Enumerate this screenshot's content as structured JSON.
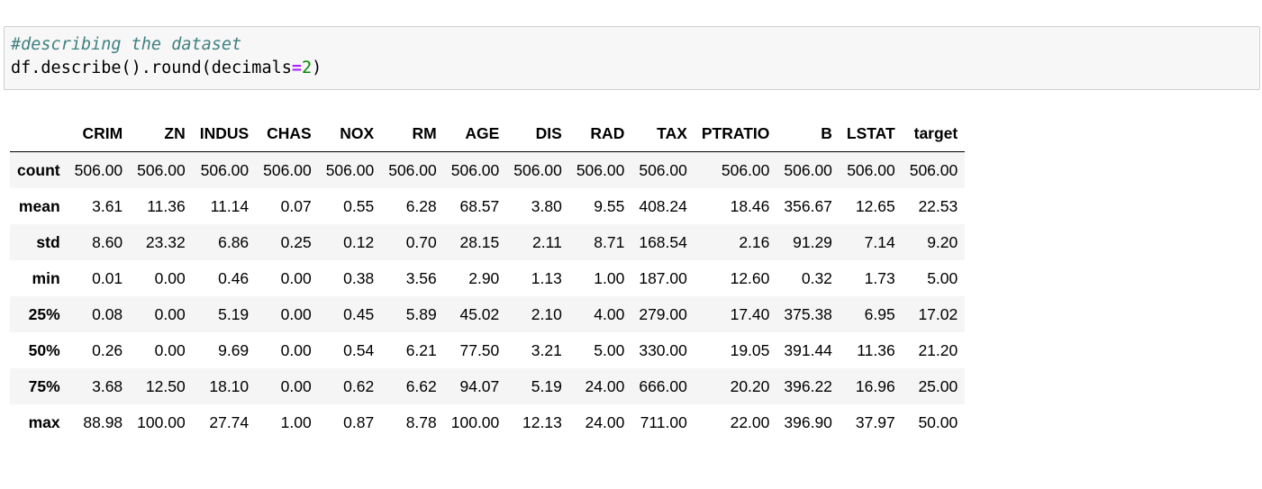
{
  "code_cell": {
    "comment": "#describing the dataset",
    "code_prefix": "df.describe().round(decimals",
    "code_operator": "=",
    "code_number": "2",
    "code_suffix": ")"
  },
  "table": {
    "corner": "",
    "columns": [
      "CRIM",
      "ZN",
      "INDUS",
      "CHAS",
      "NOX",
      "RM",
      "AGE",
      "DIS",
      "RAD",
      "TAX",
      "PTRATIO",
      "B",
      "LSTAT",
      "target"
    ],
    "rows": [
      {
        "label": "count",
        "values": [
          "506.00",
          "506.00",
          "506.00",
          "506.00",
          "506.00",
          "506.00",
          "506.00",
          "506.00",
          "506.00",
          "506.00",
          "506.00",
          "506.00",
          "506.00",
          "506.00"
        ]
      },
      {
        "label": "mean",
        "values": [
          "3.61",
          "11.36",
          "11.14",
          "0.07",
          "0.55",
          "6.28",
          "68.57",
          "3.80",
          "9.55",
          "408.24",
          "18.46",
          "356.67",
          "12.65",
          "22.53"
        ]
      },
      {
        "label": "std",
        "values": [
          "8.60",
          "23.32",
          "6.86",
          "0.25",
          "0.12",
          "0.70",
          "28.15",
          "2.11",
          "8.71",
          "168.54",
          "2.16",
          "91.29",
          "7.14",
          "9.20"
        ]
      },
      {
        "label": "min",
        "values": [
          "0.01",
          "0.00",
          "0.46",
          "0.00",
          "0.38",
          "3.56",
          "2.90",
          "1.13",
          "1.00",
          "187.00",
          "12.60",
          "0.32",
          "1.73",
          "5.00"
        ]
      },
      {
        "label": "25%",
        "values": [
          "0.08",
          "0.00",
          "5.19",
          "0.00",
          "0.45",
          "5.89",
          "45.02",
          "2.10",
          "4.00",
          "279.00",
          "17.40",
          "375.38",
          "6.95",
          "17.02"
        ]
      },
      {
        "label": "50%",
        "values": [
          "0.26",
          "0.00",
          "9.69",
          "0.00",
          "0.54",
          "6.21",
          "77.50",
          "3.21",
          "5.00",
          "330.00",
          "19.05",
          "391.44",
          "11.36",
          "21.20"
        ]
      },
      {
        "label": "75%",
        "values": [
          "3.68",
          "12.50",
          "18.10",
          "0.00",
          "0.62",
          "6.62",
          "94.07",
          "5.19",
          "24.00",
          "666.00",
          "20.20",
          "396.22",
          "16.96",
          "25.00"
        ]
      },
      {
        "label": "max",
        "values": [
          "88.98",
          "100.00",
          "27.74",
          "1.00",
          "0.87",
          "8.78",
          "100.00",
          "12.13",
          "24.00",
          "711.00",
          "22.00",
          "396.90",
          "37.97",
          "50.00"
        ]
      }
    ]
  },
  "colors": {
    "comment": "#408080",
    "operator": "#aa22ff",
    "number": "#008800",
    "cell_background": "#f7f7f7",
    "stripe": "#f5f5f5"
  }
}
